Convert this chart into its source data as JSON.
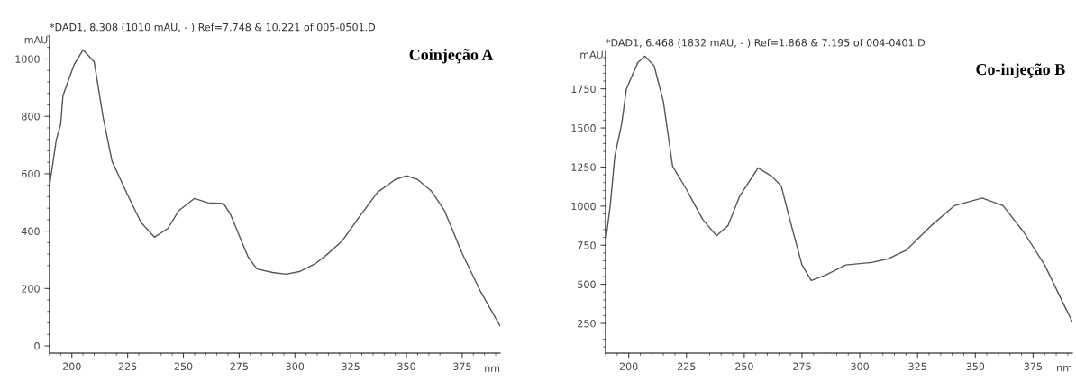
{
  "chart_data": [
    {
      "type": "line",
      "title": "Coinjeção A",
      "subtitle": "*DAD1, 8.308 (1010 mAU, - ) Ref=7.748 & 10.221 of 005-0501.D",
      "xlabel": "nm",
      "ylabel": "mAU",
      "x": [
        190,
        193,
        195,
        196,
        201,
        205,
        210,
        214,
        218,
        225,
        231,
        237,
        243,
        248,
        255,
        261,
        268,
        271,
        275,
        279,
        283,
        290,
        296,
        302,
        309,
        314,
        321,
        329,
        337,
        345,
        350,
        355,
        361,
        367,
        375,
        383,
        390,
        392
      ],
      "series": [
        {
          "color": "#555555",
          "values": [
            559,
            718,
            773,
            872,
            980,
            1032,
            990,
            797,
            644,
            526,
            430,
            379,
            409,
            472,
            514,
            499,
            496,
            460,
            385,
            310,
            268,
            256,
            250,
            259,
            286,
            316,
            364,
            451,
            535,
            580,
            593,
            580,
            541,
            472,
            322,
            193,
            96,
            70
          ]
        }
      ],
      "xlim": [
        190,
        392
      ],
      "xticks": [
        200,
        225,
        250,
        275,
        300,
        325,
        350,
        375
      ],
      "ylim": [
        -25,
        1080
      ],
      "yticks": [
        0,
        200,
        400,
        600,
        800,
        1000
      ],
      "grid": false,
      "legend": false,
      "marker": "none",
      "line_style": "solid"
    },
    {
      "type": "line",
      "title": "Co-injeção B",
      "subtitle": "*DAD1, 6.468 (1832 mAU, - ) Ref=1.868 & 7.195 of 004-0401.D",
      "xlabel": "nm",
      "ylabel": "mAU",
      "x": [
        190,
        192,
        194,
        197,
        199,
        204,
        207,
        211,
        215,
        219,
        225,
        232,
        238,
        243,
        248,
        256,
        262,
        266,
        270,
        275,
        279,
        285,
        294,
        305,
        312,
        320,
        331,
        341,
        353,
        362,
        371,
        380,
        389,
        392
      ],
      "series": [
        {
          "color": "#555555",
          "values": [
            769,
            1003,
            1321,
            1530,
            1750,
            1920,
            1959,
            1898,
            1668,
            1255,
            1107,
            915,
            810,
            876,
            1063,
            1245,
            1190,
            1129,
            898,
            624,
            525,
            558,
            624,
            640,
            662,
            717,
            876,
            1003,
            1052,
            1003,
            832,
            624,
            349,
            260
          ]
        }
      ],
      "xlim": [
        190,
        392
      ],
      "xticks": [
        200,
        225,
        250,
        275,
        300,
        325,
        350,
        375
      ],
      "ylim": [
        60,
        1990
      ],
      "yticks": [
        250,
        500,
        750,
        1000,
        1250,
        1500,
        1750
      ],
      "grid": false,
      "legend": false,
      "marker": "none",
      "line_style": "solid"
    }
  ]
}
